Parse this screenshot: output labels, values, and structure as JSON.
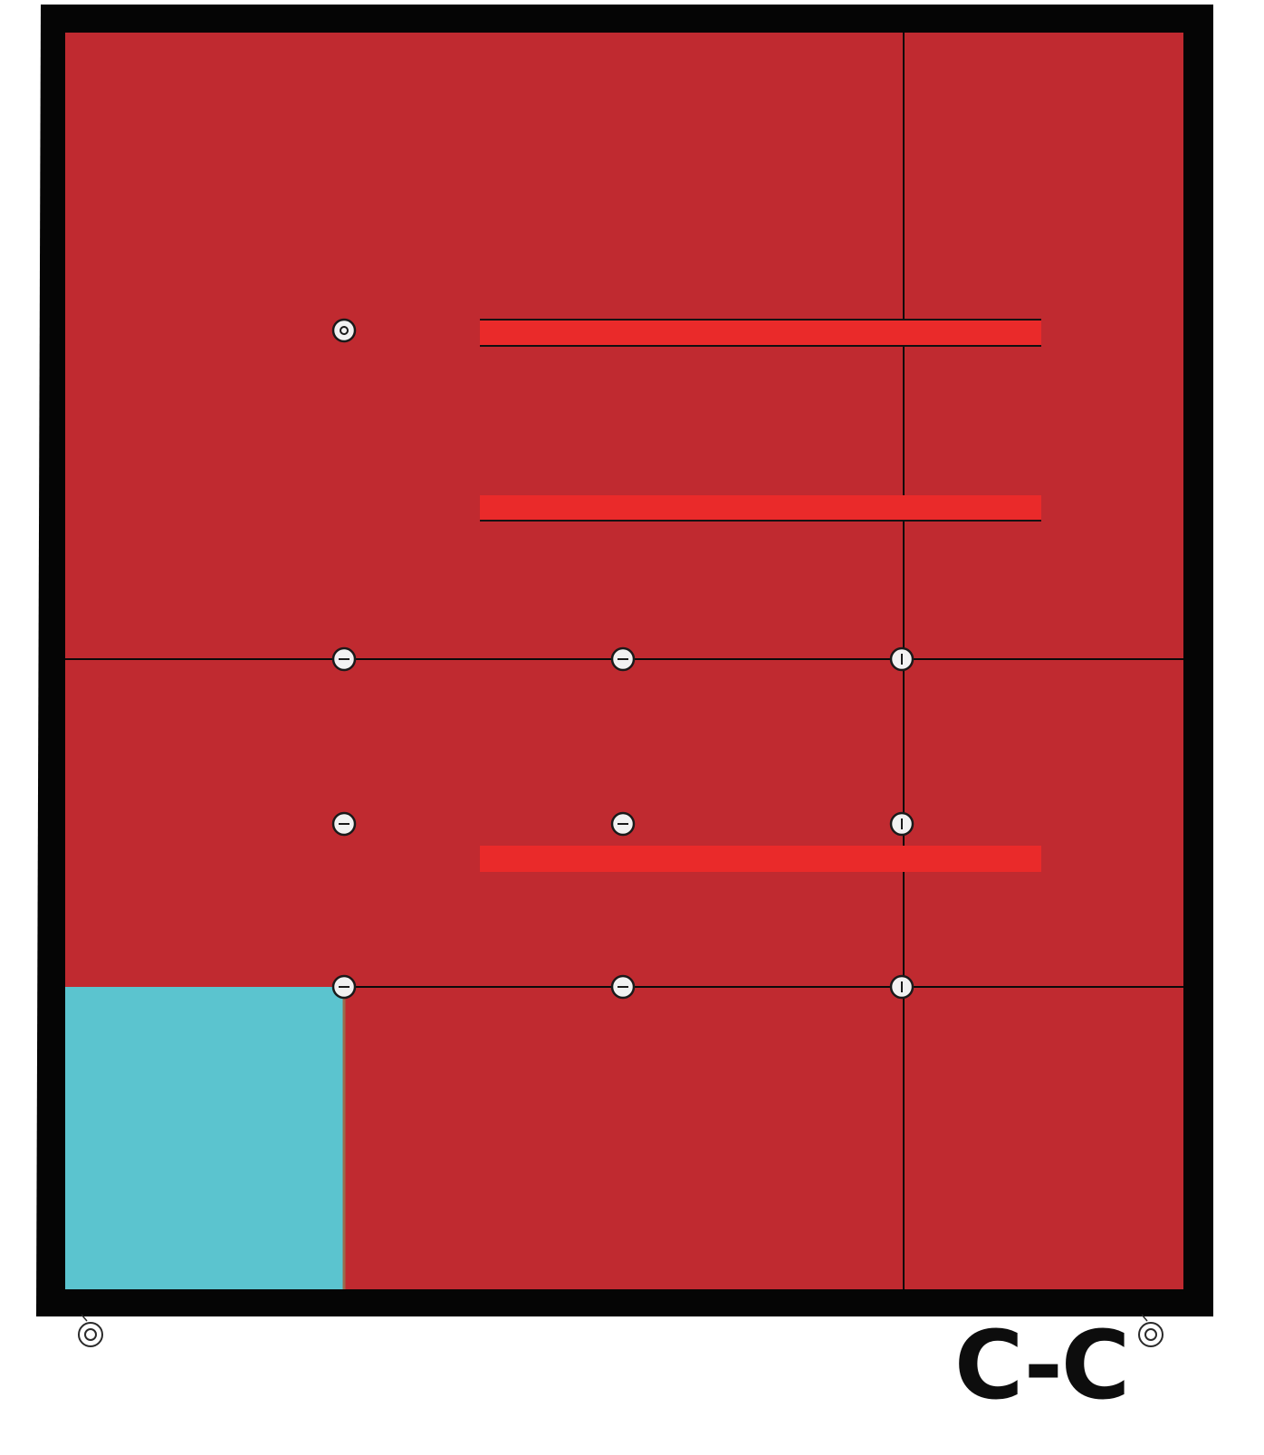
{
  "section": {
    "label": "C-C"
  },
  "colors": {
    "frame": "#050505",
    "panel": "#c02a30",
    "highlight_strip": "#ea2a2a",
    "cutout": "#5bc4cf",
    "grid_line": "#0a0a0a",
    "fastener_fill": "#f2f2f2",
    "fastener_outline": "#1a1a1a"
  },
  "elements": {
    "fasteners": [
      "fastener-icon"
    ],
    "feet": [
      "foot-icon"
    ]
  }
}
